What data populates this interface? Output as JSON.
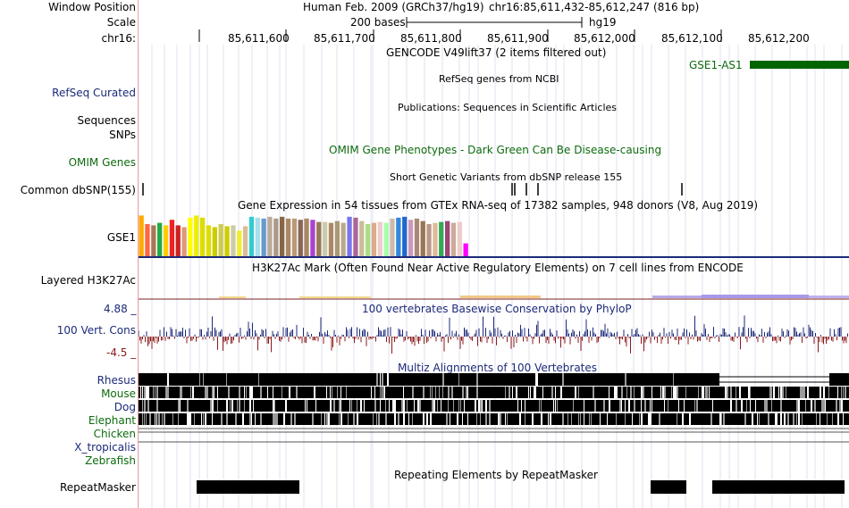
{
  "header": {
    "window_position_label": "Window Position",
    "assembly_text": "Human Feb. 2009 (GRCh37/hg19)",
    "position_text": "chr16:85,611,432-85,612,247 (816 bp)",
    "scale_label": "Scale",
    "scale_value": "200 bases",
    "scale_db": "hg19",
    "chrom_label": "chr16:",
    "ruler_ticks": [
      "85,611,600",
      "85,611,700",
      "85,611,800",
      "85,611,900",
      "85,612,000",
      "85,612,100",
      "85,612,200"
    ]
  },
  "tracks": {
    "gencode": {
      "title": "GENCODE V49lift37 (2 items filtered out)",
      "gene_label": "GSE1-AS1"
    },
    "refseq": {
      "label": "RefSeq Curated",
      "title": "RefSeq genes from NCBI"
    },
    "publications": {
      "title": "Publications: Sequences in Scientific Articles"
    },
    "sequences": {
      "label": "Sequences"
    },
    "snps": {
      "label": "SNPs"
    },
    "omim": {
      "label": "OMIM Genes",
      "title": "OMIM Gene Phenotypes - Dark Green Can Be Disease-causing"
    },
    "dbsnp": {
      "label": "Common dbSNP(155)",
      "title": "Short Genetic Variants from dbSNP release 155"
    },
    "gtex": {
      "label": "GSE1",
      "title": "Gene Expression in 54 tissues from GTEx RNA-seq of 17382 samples, 948 donors (V8, Aug 2019)",
      "bar_heights": [
        0.95,
        0.75,
        0.72,
        0.78,
        0.72,
        0.85,
        0.72,
        0.68,
        0.9,
        0.95,
        0.9,
        0.72,
        0.68,
        0.75,
        0.7,
        0.72,
        0.6,
        0.7,
        0.92,
        0.9,
        0.88,
        0.92,
        0.88,
        0.92,
        0.88,
        0.88,
        0.85,
        0.88,
        0.85,
        0.8,
        0.8,
        0.78,
        0.82,
        0.78,
        0.92,
        0.9,
        0.82,
        0.75,
        0.78,
        0.8,
        0.78,
        0.88,
        0.9,
        0.92,
        0.85,
        0.88,
        0.82,
        0.75,
        0.78,
        0.8,
        0.82,
        0.78,
        0.8,
        0.3
      ],
      "bar_colors": [
        "#ffaa00",
        "#ff6644",
        "#aa7755",
        "#22aa44",
        "#ffcc00",
        "#ee2222",
        "#cc2222",
        "#dd9977",
        "#ffff00",
        "#eeee00",
        "#dddd00",
        "#dddd00",
        "#cccc00",
        "#cccc55",
        "#cccc00",
        "#ccccaa",
        "#eeee33",
        "#ddbb99",
        "#33cccc",
        "#aaddee",
        "#6699cc",
        "#bbaa99",
        "#aa9988",
        "#886644",
        "#aa8866",
        "#bb9977",
        "#886655",
        "#aa8866",
        "#aa44cc",
        "#997755",
        "#ccccaa",
        "#aa8866",
        "#aa9977",
        "#bbaa88",
        "#7777ee",
        "#aa6699",
        "#ccbb99",
        "#aadd88",
        "#ddaa88",
        "#eecccc",
        "#aaffaa",
        "#ccbbaa",
        "#3388dd",
        "#2266cc",
        "#cc99bb",
        "#aa8877",
        "#997755",
        "#bb9988",
        "#ddbb99",
        "#33aa55",
        "#994477",
        "#ccaa99",
        "#eecccc",
        "#ff00ff"
      ]
    },
    "h3k27ac": {
      "label": "Layered H3K27Ac",
      "title": "H3K27Ac Mark (Often Found Near Active Regulatory Elements) on 7 cell lines from ENCODE"
    },
    "cons": {
      "label": "100 Vert. Cons",
      "max": "4.88 _",
      "min": "-4.5 _",
      "title": "100 vertebrates Basewise Conservation by PhyloP"
    },
    "multiz": {
      "title": "Multiz Alignments of 100 Vertebrates",
      "species": [
        "Rhesus",
        "Mouse",
        "Dog",
        "Elephant",
        "Chicken",
        "X_tropicalis",
        "Zebrafish"
      ]
    },
    "repeatmasker": {
      "label": "RepeatMasker",
      "title": "Repeating Elements by RepeatMasker"
    }
  },
  "colors": {
    "navy": "#1c2a78",
    "green": "#0e6b0e",
    "gene_green": "#006400",
    "cons_pos": "#1c2a78",
    "cons_neg": "#8b1a1a",
    "grid": "#c8c8e6",
    "left_border": "#f0a0a0"
  }
}
